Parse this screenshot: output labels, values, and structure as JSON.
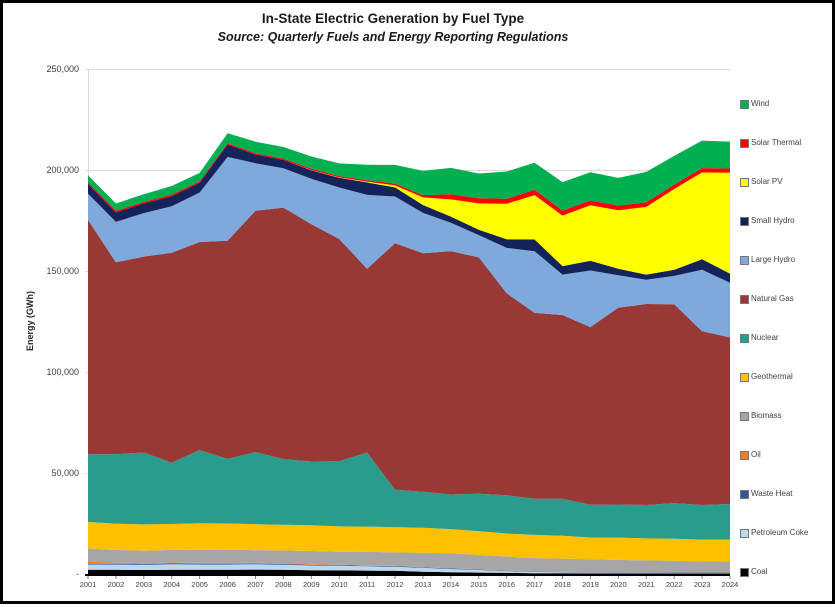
{
  "title": "In-State Electric Generation by Fuel Type",
  "subtitle": "Source: Quarterly Fuels and Energy Reporting Regulations",
  "chart_data": {
    "type": "area",
    "stacked": true,
    "title": "In-State Electric Generation by Fuel Type",
    "subtitle": "Source: Quarterly Fuels and Energy Reporting Regulations",
    "xlabel": "",
    "ylabel": "Energy (GWh)",
    "ylim": [
      0,
      250000
    ],
    "grid": "horizontal-gridlines",
    "legend_position": "right-vertical-top-is-last-series",
    "y_ticks": [
      {
        "value": 0,
        "label": "-"
      },
      {
        "value": 50000,
        "label": "50,000"
      },
      {
        "value": 100000,
        "label": "100,000"
      },
      {
        "value": 150000,
        "label": "150,000"
      },
      {
        "value": 200000,
        "label": "200,000"
      },
      {
        "value": 250000,
        "label": "250,000"
      }
    ],
    "x": [
      2001,
      2002,
      2003,
      2004,
      2005,
      2006,
      2007,
      2008,
      2009,
      2010,
      2011,
      2012,
      2013,
      2014,
      2015,
      2016,
      2017,
      2018,
      2019,
      2020,
      2021,
      2022,
      2023,
      2024
    ],
    "series": [
      {
        "name": "Coal",
        "color": "#000000",
        "values": [
          2100,
          2100,
          2000,
          2100,
          2100,
          2100,
          2200,
          2100,
          1900,
          1800,
          1700,
          1600,
          1100,
          900,
          700,
          600,
          400,
          350,
          300,
          300,
          300,
          300,
          250,
          250
        ]
      },
      {
        "name": "Petroleum Coke",
        "color": "#BDD7EE",
        "values": [
          2600,
          2600,
          2500,
          2700,
          2600,
          2600,
          2600,
          2500,
          2300,
          2200,
          2100,
          2000,
          1900,
          1600,
          1300,
          800,
          600,
          500,
          400,
          350,
          300,
          250,
          250,
          250
        ]
      },
      {
        "name": "Waste Heat",
        "color": "#2F5597",
        "values": [
          400,
          400,
          400,
          400,
          400,
          400,
          350,
          350,
          300,
          300,
          300,
          300,
          250,
          250,
          250,
          250,
          200,
          200,
          200,
          200,
          200,
          200,
          200,
          200
        ]
      },
      {
        "name": "Oil",
        "color": "#ED7D31",
        "values": [
          1100,
          500,
          450,
          450,
          450,
          400,
          400,
          350,
          300,
          250,
          150,
          100,
          100,
          100,
          100,
          100,
          80,
          60,
          50,
          40,
          40,
          35,
          35,
          35
        ]
      },
      {
        "name": "Biomass",
        "color": "#A6A6A6",
        "values": [
          6400,
          6300,
          6200,
          6300,
          6500,
          6600,
          6300,
          6400,
          6600,
          6500,
          6700,
          6700,
          7200,
          7400,
          7100,
          6900,
          6600,
          6500,
          6400,
          6100,
          5900,
          5800,
          5500,
          5400
        ]
      },
      {
        "name": "Geothermal",
        "color": "#FFC000",
        "values": [
          13200,
          13000,
          13000,
          12800,
          13100,
          12900,
          12800,
          12700,
          12700,
          12500,
          12500,
          12500,
          12300,
          12000,
          11800,
          11400,
          11500,
          11300,
          10700,
          11100,
          10900,
          10900,
          10800,
          10900
        ]
      },
      {
        "name": "Nuclear",
        "color": "#299C8E",
        "values": [
          33500,
          34400,
          35600,
          30300,
          36200,
          32000,
          35700,
          32500,
          31600,
          32300,
          36700,
          18500,
          17900,
          17100,
          18500,
          18900,
          17900,
          18300,
          16200,
          16300,
          16500,
          17600,
          17100,
          17600
        ]
      },
      {
        "name": "Natural Gas",
        "color": "#993935",
        "values": [
          116000,
          95000,
          97000,
          104000,
          103000,
          108000,
          119500,
          124500,
          117500,
          110000,
          91000,
          122000,
          118000,
          120500,
          117000,
          100000,
          92000,
          91000,
          88000,
          97500,
          99500,
          98500,
          86000,
          82500
        ]
      },
      {
        "name": "Large Hydro",
        "color": "#7FA8DC",
        "values": [
          13000,
          20000,
          21500,
          23000,
          24500,
          41500,
          23500,
          19500,
          22500,
          25500,
          36500,
          23200,
          20000,
          14000,
          11000,
          22500,
          30500,
          20000,
          28000,
          16000,
          12000,
          14000,
          30500,
          27000
        ]
      },
      {
        "name": "Small Hydro",
        "color": "#15235B",
        "values": [
          4800,
          4700,
          4800,
          5000,
          4900,
          6100,
          4300,
          4100,
          4200,
          4800,
          6200,
          4500,
          3900,
          3100,
          2700,
          4300,
          5800,
          4200,
          4800,
          3200,
          2600,
          3000,
          5200,
          4600
        ]
      },
      {
        "name": "Solar PV",
        "color": "#FFFF00",
        "values": [
          0,
          0,
          0,
          0,
          0,
          0,
          0,
          0,
          100,
          200,
          400,
          1000,
          3800,
          8500,
          13000,
          17500,
          22000,
          25000,
          27500,
          29000,
          33500,
          40000,
          43000,
          50000
        ]
      },
      {
        "name": "Solar Thermal",
        "color": "#FF0000",
        "values": [
          800,
          800,
          750,
          750,
          700,
          650,
          650,
          700,
          700,
          700,
          700,
          900,
          1100,
          2500,
          2600,
          2500,
          2600,
          2500,
          2400,
          2300,
          2300,
          2200,
          2100,
          2000
        ]
      },
      {
        "name": "Wind",
        "color": "#00B050",
        "values": [
          3500,
          3600,
          3800,
          4300,
          4100,
          4900,
          5700,
          5700,
          6000,
          6200,
          7600,
          9200,
          12000,
          13100,
          12200,
          13500,
          13400,
          14100,
          13900,
          13700,
          15000,
          14200,
          13600,
          13300
        ]
      }
    ]
  }
}
